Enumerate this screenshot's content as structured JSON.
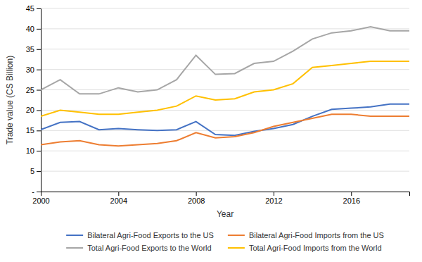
{
  "chart_data": {
    "type": "line",
    "x": [
      2000,
      2001,
      2002,
      2003,
      2004,
      2005,
      2006,
      2007,
      2008,
      2009,
      2010,
      2011,
      2012,
      2013,
      2014,
      2015,
      2016,
      2017,
      2018,
      2019
    ],
    "series": [
      {
        "name": "Bilateral Agri-Food Exports to the US",
        "color": "#4472C4",
        "values": [
          15.2,
          17.0,
          17.2,
          15.2,
          15.5,
          15.2,
          15.0,
          15.2,
          17.2,
          14.0,
          13.8,
          14.8,
          15.5,
          16.5,
          18.5,
          20.2,
          20.5,
          20.8,
          21.5,
          21.5
        ]
      },
      {
        "name": "Bilateral Agri-Food Imports from the US",
        "color": "#ED7D31",
        "values": [
          11.5,
          12.2,
          12.5,
          11.5,
          11.2,
          11.5,
          11.8,
          12.5,
          14.5,
          13.2,
          13.5,
          14.5,
          16.0,
          17.0,
          18.0,
          19.0,
          19.0,
          18.5,
          18.5,
          18.5
        ]
      },
      {
        "name": "Total Agri-Food Exports to the World",
        "color": "#A6A6A6",
        "values": [
          25.0,
          27.5,
          24.0,
          24.0,
          25.5,
          24.5,
          25.0,
          27.5,
          33.5,
          28.8,
          29.0,
          31.5,
          32.0,
          34.5,
          37.5,
          39.0,
          39.5,
          40.5,
          39.5,
          39.5
        ]
      },
      {
        "name": "Total Agri-Food Imports from the World",
        "color": "#FFC000",
        "values": [
          18.5,
          20.0,
          19.5,
          19.0,
          19.0,
          19.5,
          20.0,
          21.0,
          23.5,
          22.5,
          22.8,
          24.5,
          25.0,
          26.5,
          30.5,
          31.0,
          31.5,
          32.0,
          32.0,
          32.0
        ]
      }
    ],
    "xlabel": "Year",
    "ylabel": "Trade value (CS Billion)",
    "xlim": [
      2000,
      2019
    ],
    "xticks": [
      2000,
      2004,
      2008,
      2012,
      2016
    ],
    "ylim": [
      0,
      45
    ],
    "yticks": [
      {
        "value": 0,
        "label": "-"
      },
      5,
      10,
      15,
      20,
      25,
      30,
      35,
      40,
      45
    ],
    "grid": "y",
    "legend": "bottom"
  }
}
